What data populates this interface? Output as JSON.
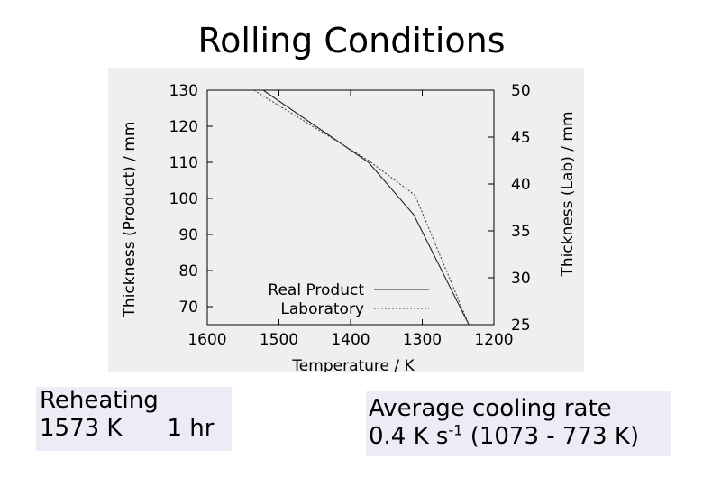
{
  "slide": {
    "title": "Rolling Conditions"
  },
  "reheating": {
    "label": "Reheating",
    "temperature": "1573 K",
    "time": "1 hr"
  },
  "cooling": {
    "label": "Average cooling rate",
    "rate_value": "0.4 K s",
    "rate_exponent": "-1",
    "range": "(1073 - 773 K)"
  },
  "chart_data": {
    "type": "line",
    "title": "",
    "xlabel": "Temperature / K",
    "ylabel_left": "Thickness (Product) / mm",
    "ylabel_right": "Thickness (Lab) / mm",
    "xlim": [
      1600,
      1200
    ],
    "x_reversed": true,
    "ylim_left": [
      65,
      130
    ],
    "ylim_right": [
      25,
      50
    ],
    "x_ticks": [
      "1600",
      "1500",
      "1400",
      "1300",
      "1200"
    ],
    "y_ticks_left": [
      "130",
      "120",
      "110",
      "100",
      "90",
      "80",
      "70"
    ],
    "y_ticks_right": [
      "50",
      "45",
      "40",
      "35",
      "30",
      "25"
    ],
    "grid": false,
    "legend_position": "bottom-right",
    "series": [
      {
        "name": "Real Product",
        "axis": "left",
        "style": "solid",
        "color": "#222222",
        "x": [
          1522,
          1375,
          1312,
          1235
        ],
        "y": [
          130,
          110,
          95.5,
          65
        ]
      },
      {
        "name": "Laboratory",
        "axis": "right",
        "style": "dotted",
        "color": "#444444",
        "x": [
          1535,
          1375,
          1310,
          1235
        ],
        "y": [
          50,
          42.5,
          38.8,
          25
        ]
      }
    ]
  }
}
